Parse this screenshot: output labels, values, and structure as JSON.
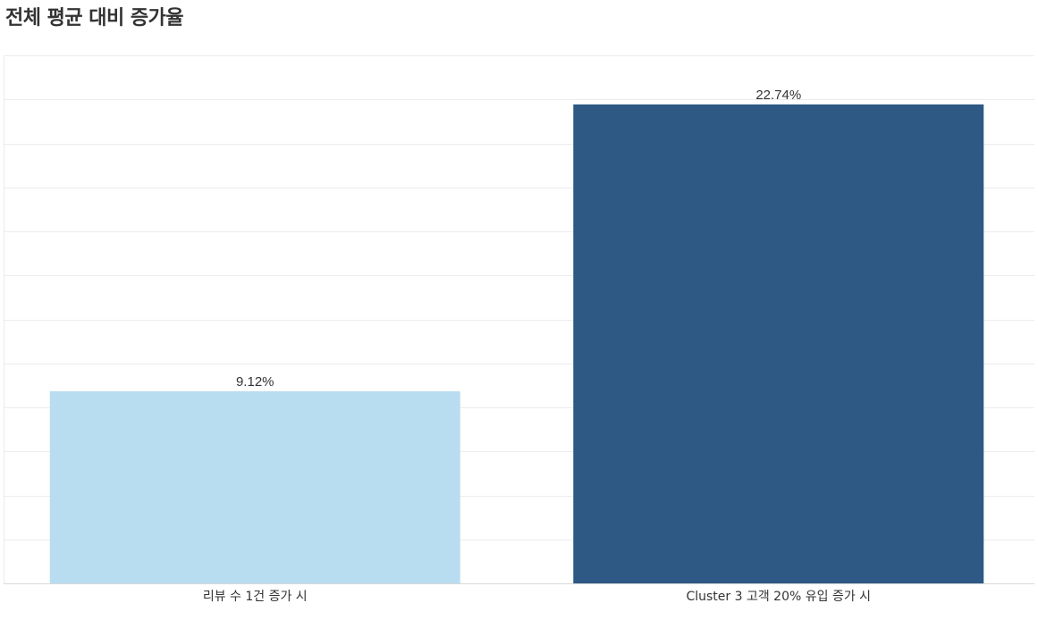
{
  "title": "전체 평균 대비 증가율",
  "chart_data": {
    "type": "bar",
    "title": "전체 평균 대비 증가율",
    "categories": [
      "리뷰 수 1건 증가 시",
      "Cluster 3 고객 20% 유입 증가 시"
    ],
    "values": [
      9.12,
      22.74
    ],
    "value_labels": [
      "9.12%",
      "22.74%"
    ],
    "unit": "%",
    "ylim": [
      0,
      25
    ],
    "grid": true,
    "xlabel": "",
    "ylabel": "",
    "bar_colors": [
      "#b9ddf0",
      "#2d5984"
    ]
  }
}
